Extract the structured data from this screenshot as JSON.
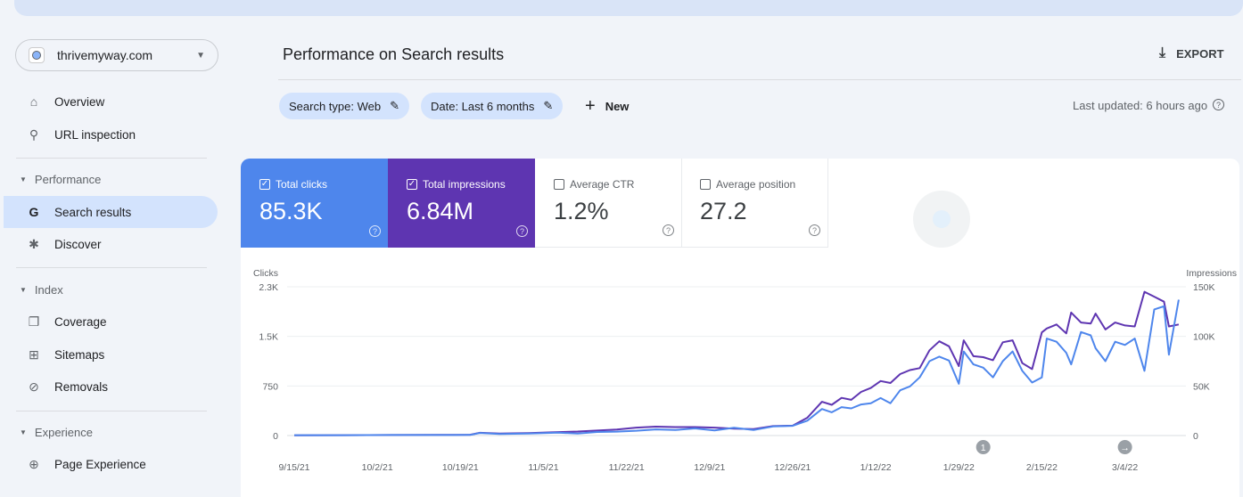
{
  "property": {
    "name": "thrivemyway.com"
  },
  "sidebar": {
    "overview": "Overview",
    "url_inspection": "URL inspection",
    "performance": "Performance",
    "search_results": "Search results",
    "discover": "Discover",
    "index": "Index",
    "coverage": "Coverage",
    "sitemaps": "Sitemaps",
    "removals": "Removals",
    "experience": "Experience",
    "page_experience": "Page Experience"
  },
  "header": {
    "title": "Performance on Search results",
    "export": "EXPORT"
  },
  "filters": {
    "search_type": "Search type: Web",
    "date": "Date: Last 6 months",
    "new": "New",
    "last_updated": "Last updated: 6 hours ago"
  },
  "cards": [
    {
      "label": "Total clicks",
      "value": "85.3K",
      "checked": true,
      "color": "#4e86ec"
    },
    {
      "label": "Total impressions",
      "value": "6.84M",
      "checked": true,
      "color": "#5e35b1"
    },
    {
      "label": "Average CTR",
      "value": "1.2%",
      "checked": false
    },
    {
      "label": "Average position",
      "value": "27.2",
      "checked": false
    }
  ],
  "chart_data": {
    "type": "line",
    "left_axis_label": "Clicks",
    "right_axis_label": "Impressions",
    "left_ticks": [
      "0",
      "750",
      "1.5K",
      "2.3K"
    ],
    "left_range": [
      0,
      2300
    ],
    "right_ticks": [
      "0",
      "50K",
      "100K",
      "150K"
    ],
    "right_range": [
      0,
      150000
    ],
    "x_labels": [
      "9/15/21",
      "10/2/21",
      "10/19/21",
      "11/5/21",
      "11/22/21",
      "12/9/21",
      "12/26/21",
      "1/12/22",
      "1/29/22",
      "2/15/22",
      "3/4/22"
    ],
    "x_label_days": [
      0,
      17,
      34,
      51,
      68,
      85,
      102,
      119,
      136,
      153,
      170
    ],
    "annotations": [
      {
        "day": 141,
        "label": "1"
      },
      {
        "day": 170,
        "label": "→"
      }
    ],
    "series": [
      {
        "name": "Clicks",
        "axis": "left",
        "color": "#4e86ec",
        "days": [
          0,
          10,
          20,
          30,
          36,
          38,
          42,
          48,
          54,
          58,
          62,
          66,
          70,
          74,
          78,
          82,
          86,
          90,
          94,
          98,
          102,
          105,
          108,
          110,
          112,
          114,
          116,
          118,
          120,
          122,
          124,
          126,
          128,
          130,
          132,
          134,
          136,
          137,
          139,
          141,
          143,
          145,
          147,
          149,
          151,
          153,
          154,
          156,
          158,
          159,
          161,
          163,
          164,
          166,
          168,
          170,
          172,
          174,
          176,
          178,
          179,
          181
        ],
        "values": [
          5,
          6,
          8,
          8,
          10,
          40,
          25,
          30,
          45,
          30,
          55,
          60,
          75,
          95,
          85,
          110,
          80,
          120,
          85,
          140,
          150,
          230,
          410,
          360,
          440,
          420,
          480,
          500,
          580,
          500,
          700,
          760,
          900,
          1150,
          1220,
          1160,
          800,
          1300,
          1100,
          1050,
          900,
          1150,
          1300,
          1000,
          820,
          900,
          1500,
          1450,
          1280,
          1100,
          1600,
          1550,
          1350,
          1150,
          1450,
          1400,
          1500,
          1000,
          1950,
          2000,
          1250,
          2100
        ]
      },
      {
        "name": "Impressions",
        "axis": "right",
        "color": "#5e35b1",
        "days": [
          0,
          10,
          20,
          30,
          36,
          38,
          42,
          48,
          54,
          58,
          62,
          66,
          70,
          74,
          78,
          82,
          86,
          90,
          94,
          98,
          102,
          105,
          108,
          110,
          112,
          114,
          116,
          118,
          120,
          122,
          124,
          126,
          128,
          130,
          132,
          134,
          136,
          137,
          139,
          141,
          143,
          145,
          147,
          149,
          151,
          153,
          154,
          156,
          158,
          159,
          161,
          163,
          164,
          166,
          168,
          170,
          172,
          174,
          176,
          178,
          179,
          181
        ],
        "values": [
          300,
          400,
          500,
          600,
          800,
          2800,
          2000,
          2500,
          3500,
          4000,
          5000,
          6000,
          8000,
          9000,
          8500,
          8500,
          8000,
          7000,
          6500,
          9500,
          10000,
          18000,
          34000,
          31000,
          38000,
          36000,
          44000,
          48000,
          55000,
          53000,
          62000,
          66000,
          68000,
          86000,
          95000,
          90000,
          70000,
          96000,
          80000,
          79000,
          76000,
          94000,
          96000,
          73000,
          67000,
          104000,
          108000,
          112000,
          103000,
          124000,
          114000,
          113000,
          123000,
          107000,
          114000,
          111000,
          110000,
          145000,
          140000,
          135000,
          110000,
          112000
        ]
      }
    ]
  }
}
